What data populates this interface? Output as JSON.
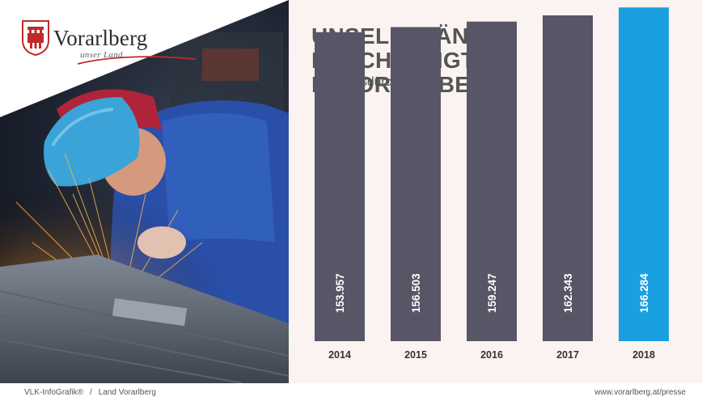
{
  "logo": {
    "name": "Vorarlberg",
    "tagline": "unser Land"
  },
  "header": {
    "title_line1": "UNSELBSTÄNDIG BESCHÄFTIGTE",
    "title_line2": "IN VORARLBERG",
    "subtitle": "Im Jahresdurchschnitt"
  },
  "colors": {
    "bar_default": "#585566",
    "bar_highlight": "#1aa0e0",
    "panel_background": "#fbf3f1",
    "title_text": "#555555"
  },
  "chart_data": {
    "type": "bar",
    "title": "UNSELBSTÄNDIG BESCHÄFTIGTE IN VORARLBERG",
    "subtitle": "Im Jahresdurchschnitt",
    "categories": [
      "2014",
      "2015",
      "2016",
      "2017",
      "2018"
    ],
    "values": [
      153957,
      156503,
      159247,
      162343,
      166284
    ],
    "value_labels": [
      "153.957",
      "156.503",
      "159.247",
      "162.343",
      "166.284"
    ],
    "highlight_index": 4,
    "xlabel": "",
    "ylabel": "",
    "ylim": [
      0,
      170000
    ],
    "grid": false,
    "legend": "none"
  },
  "footer": {
    "source_left": "VLK-InfoGrafik®",
    "separator": "/",
    "source_right": "Land Vorarlberg",
    "url": "www.vorarlberg.at/presse"
  }
}
